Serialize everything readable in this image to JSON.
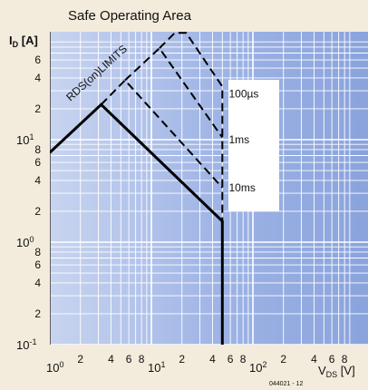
{
  "chart_data": {
    "type": "line",
    "title": "Safe Operating Area",
    "ylabel": {
      "main": "I",
      "sub": "D",
      "unit": " [A]"
    },
    "xlabel": {
      "main": "V",
      "sub": "DS",
      "unit": " [V]"
    },
    "x_scale": "log",
    "y_scale": "log",
    "xlim": [
      1,
      500
    ],
    "ylim": [
      0.1,
      100
    ],
    "grid": true,
    "x_major_ticks": [
      {
        "value": 1,
        "base": "10",
        "exp": "0"
      },
      {
        "value": 10,
        "base": "10",
        "exp": "1"
      },
      {
        "value": 100,
        "base": "10",
        "exp": "2"
      }
    ],
    "x_minor_tick_labels": [
      {
        "value": 2,
        "label": "2"
      },
      {
        "value": 4,
        "label": "4"
      },
      {
        "value": 6,
        "label": "6"
      },
      {
        "value": 8,
        "label": "8"
      },
      {
        "value": 20,
        "label": "2"
      },
      {
        "value": 40,
        "label": "4"
      },
      {
        "value": 60,
        "label": "6"
      },
      {
        "value": 80,
        "label": "8"
      },
      {
        "value": 200,
        "label": "2"
      },
      {
        "value": 400,
        "label": "4"
      },
      {
        "value": 600,
        "label": "6"
      },
      {
        "value": 800,
        "label": "8"
      }
    ],
    "y_major_ticks": [
      {
        "value": 0.1,
        "base": "10",
        "exp": "-1"
      },
      {
        "value": 1,
        "base": "10",
        "exp": "0"
      },
      {
        "value": 10,
        "base": "10",
        "exp": "1"
      }
    ],
    "y_minor_tick_labels": [
      {
        "value": 0.2,
        "label": "2"
      },
      {
        "value": 0.4,
        "label": "4"
      },
      {
        "value": 0.6,
        "label": "6"
      },
      {
        "value": 0.8,
        "label": "8"
      },
      {
        "value": 2,
        "label": "2"
      },
      {
        "value": 4,
        "label": "4"
      },
      {
        "value": 6,
        "label": "6"
      },
      {
        "value": 8,
        "label": "8"
      },
      {
        "value": 20,
        "label": "2"
      },
      {
        "value": 40,
        "label": "4"
      },
      {
        "value": 60,
        "label": "6"
      }
    ],
    "series": [
      {
        "name": "",
        "style": "solid",
        "points": [
          [
            1,
            7.5
          ],
          [
            3.2,
            22
          ],
          [
            50,
            1.6
          ],
          [
            50,
            0.1
          ]
        ]
      },
      {
        "name": "10ms",
        "style": "dashed",
        "points": [
          [
            3.2,
            22
          ],
          [
            5.5,
            38
          ],
          [
            50,
            3.4
          ]
        ]
      },
      {
        "name": "1ms",
        "style": "dashed",
        "points": [
          [
            5.5,
            38
          ],
          [
            12,
            78
          ],
          [
            50,
            10.5
          ]
        ]
      },
      {
        "name": "100µs",
        "style": "dashed",
        "points": [
          [
            12,
            78
          ],
          [
            17,
            110
          ],
          [
            22,
            110
          ],
          [
            50,
            33
          ],
          [
            50,
            1.6
          ]
        ]
      }
    ],
    "annotations": [
      {
        "text": "100µs",
        "x": 58,
        "y": 28
      },
      {
        "text": "1ms",
        "x": 58,
        "y": 10
      },
      {
        "text": "10ms",
        "x": 58,
        "y": 3.4
      },
      {
        "text": "RDS(on)LIMITS",
        "x": 2.4,
        "y": 20
      }
    ],
    "figure_id": "044021 - 12",
    "colors": {
      "plot_bg": "#9eb4e4",
      "grid": "#ffffff",
      "line": "#000000",
      "panel": "#ffffff",
      "page": "#f3ecdc"
    }
  }
}
